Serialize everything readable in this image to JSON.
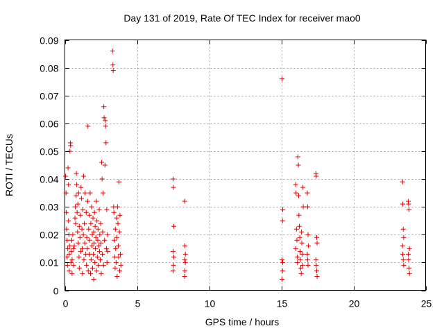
{
  "chart_data": {
    "type": "scatter",
    "title": "Day 131 of 2019, Rate Of TEC Index for receiver mao0",
    "xlabel": "GPS time / hours",
    "ylabel": "ROTI / TECUs",
    "xlim": [
      0,
      25
    ],
    "ylim": [
      0,
      0.09
    ],
    "x_ticks": [
      0,
      5,
      10,
      15,
      20,
      25
    ],
    "x_tick_labels": [
      "0",
      "5",
      "10",
      "15",
      "20",
      "25"
    ],
    "y_ticks": [
      0,
      0.01,
      0.02,
      0.03,
      0.04,
      0.05,
      0.06,
      0.07,
      0.08,
      0.09
    ],
    "y_tick_labels": [
      "0",
      "0.01",
      "0.02",
      "0.03",
      "0.04",
      "0.05",
      "0.06",
      "0.07",
      "0.08",
      "0.09"
    ],
    "grid": true,
    "marker": "+",
    "colors": {
      "points": "#e00000",
      "grid": "#a0a0a0",
      "axes": "#000000"
    },
    "series": [
      {
        "name": "ROTI",
        "points": [
          [
            0.05,
            0.041
          ],
          [
            0.08,
            0.035
          ],
          [
            0.1,
            0.028
          ],
          [
            0.12,
            0.022
          ],
          [
            0.15,
            0.018
          ],
          [
            0.15,
            0.012
          ],
          [
            0.18,
            0.009
          ],
          [
            0.2,
            0.015
          ],
          [
            0.22,
            0.044
          ],
          [
            0.25,
            0.038
          ],
          [
            0.25,
            0.025
          ],
          [
            0.28,
            0.02
          ],
          [
            0.3,
            0.013
          ],
          [
            0.3,
            0.007
          ],
          [
            0.32,
            0.016
          ],
          [
            0.35,
            0.05
          ],
          [
            0.38,
            0.053
          ],
          [
            0.4,
            0.052
          ],
          [
            0.42,
            0.01
          ],
          [
            0.45,
            0.014
          ],
          [
            0.48,
            0.018
          ],
          [
            0.5,
            0.011
          ],
          [
            0.5,
            0.006
          ],
          [
            0.55,
            0.02
          ],
          [
            0.6,
            0.015
          ],
          [
            0.6,
            0.009
          ],
          [
            0.65,
            0.016
          ],
          [
            0.7,
            0.026
          ],
          [
            0.72,
            0.03
          ],
          [
            0.75,
            0.024
          ],
          [
            0.78,
            0.034
          ],
          [
            0.8,
            0.042
          ],
          [
            0.82,
            0.038
          ],
          [
            0.85,
            0.028
          ],
          [
            0.88,
            0.021
          ],
          [
            0.9,
            0.031
          ],
          [
            0.92,
            0.017
          ],
          [
            0.95,
            0.035
          ],
          [
            0.98,
            0.012
          ],
          [
            1.0,
            0.023
          ],
          [
            1.0,
            0.008
          ],
          [
            1.05,
            0.019
          ],
          [
            1.08,
            0.027
          ],
          [
            1.1,
            0.014
          ],
          [
            1.12,
            0.037
          ],
          [
            1.15,
            0.033
          ],
          [
            1.18,
            0.022
          ],
          [
            1.2,
            0.015
          ],
          [
            1.22,
            0.006
          ],
          [
            1.25,
            0.029
          ],
          [
            1.28,
            0.02
          ],
          [
            1.3,
            0.041
          ],
          [
            1.32,
            0.011
          ],
          [
            1.35,
            0.024
          ],
          [
            1.38,
            0.017
          ],
          [
            1.4,
            0.035
          ],
          [
            1.45,
            0.013
          ],
          [
            1.48,
            0.028
          ],
          [
            1.5,
            0.009
          ],
          [
            1.52,
            0.019
          ],
          [
            1.55,
            0.015
          ],
          [
            1.58,
            0.032
          ],
          [
            1.6,
            0.059
          ],
          [
            1.62,
            0.007
          ],
          [
            1.65,
            0.022
          ],
          [
            1.68,
            0.013
          ],
          [
            1.7,
            0.027
          ],
          [
            1.72,
            0.018
          ],
          [
            1.75,
            0.035
          ],
          [
            1.78,
            0.006
          ],
          [
            1.8,
            0.024
          ],
          [
            1.82,
            0.011
          ],
          [
            1.85,
            0.03
          ],
          [
            1.88,
            0.016
          ],
          [
            1.9,
            0.02
          ],
          [
            1.92,
            0.008
          ],
          [
            1.95,
            0.026
          ],
          [
            1.98,
            0.013
          ],
          [
            2.0,
            0.021
          ],
          [
            2.0,
            0.004
          ],
          [
            2.02,
            0.017
          ],
          [
            2.05,
            0.028
          ],
          [
            2.08,
            0.01
          ],
          [
            2.1,
            0.023
          ],
          [
            2.12,
            0.015
          ],
          [
            2.15,
            0.019
          ],
          [
            2.18,
            0.032
          ],
          [
            2.2,
            0.007
          ],
          [
            2.22,
            0.025
          ],
          [
            2.25,
            0.012
          ],
          [
            2.28,
            0.018
          ],
          [
            2.3,
            0.022
          ],
          [
            2.32,
            0.009
          ],
          [
            2.35,
            0.016
          ],
          [
            2.38,
            0.029
          ],
          [
            2.4,
            0.014
          ],
          [
            2.42,
            0.02
          ],
          [
            2.45,
            0.011
          ],
          [
            2.48,
            0.024
          ],
          [
            2.5,
            0.017
          ],
          [
            2.52,
            0.006
          ],
          [
            2.55,
            0.046
          ],
          [
            2.58,
            0.04
          ],
          [
            2.6,
            0.013
          ],
          [
            2.62,
            0.021
          ],
          [
            2.65,
            0.035
          ],
          [
            2.68,
            0.009
          ],
          [
            2.7,
            0.066
          ],
          [
            2.72,
            0.062
          ],
          [
            2.75,
            0.018
          ],
          [
            2.78,
            0.045
          ],
          [
            2.8,
            0.061
          ],
          [
            2.82,
            0.059
          ],
          [
            2.85,
            0.053
          ],
          [
            2.88,
            0.015
          ],
          [
            2.9,
            0.029
          ],
          [
            2.92,
            0.01
          ],
          [
            2.95,
            0.02
          ],
          [
            2.98,
            0.014
          ],
          [
            3.3,
            0.086
          ],
          [
            3.33,
            0.081
          ],
          [
            3.35,
            0.079
          ],
          [
            3.38,
            0.03
          ],
          [
            3.4,
            0.028
          ],
          [
            3.42,
            0.018
          ],
          [
            3.45,
            0.012
          ],
          [
            3.48,
            0.008
          ],
          [
            3.5,
            0.022
          ],
          [
            3.52,
            0.015
          ],
          [
            3.55,
            0.01
          ],
          [
            3.58,
            0.026
          ],
          [
            3.6,
            0.019
          ],
          [
            3.62,
            0.005
          ],
          [
            3.65,
            0.03
          ],
          [
            3.68,
            0.024
          ],
          [
            3.7,
            0.016
          ],
          [
            3.72,
            0.012
          ],
          [
            3.75,
            0.039
          ],
          [
            3.78,
            0.021
          ],
          [
            3.8,
            0.007
          ],
          [
            3.82,
            0.027
          ],
          [
            3.85,
            0.013
          ],
          [
            3.88,
            0.009
          ],
          [
            7.5,
            0.04
          ],
          [
            7.52,
            0.037
          ],
          [
            7.55,
            0.023
          ],
          [
            7.5,
            0.014
          ],
          [
            7.55,
            0.012
          ],
          [
            7.52,
            0.009
          ],
          [
            7.5,
            0.007
          ],
          [
            8.3,
            0.032
          ],
          [
            8.32,
            0.016
          ],
          [
            8.35,
            0.013
          ],
          [
            8.3,
            0.011
          ],
          [
            8.35,
            0.01
          ],
          [
            8.32,
            0.007
          ],
          [
            8.3,
            0.005
          ],
          [
            15.05,
            0.076
          ],
          [
            15.1,
            0.029
          ],
          [
            15.08,
            0.025
          ],
          [
            15.05,
            0.011
          ],
          [
            15.1,
            0.01
          ],
          [
            15.08,
            0.007
          ],
          [
            15.05,
            0.004
          ],
          [
            16.0,
            0.038
          ],
          [
            16.02,
            0.035
          ],
          [
            16.05,
            0.022
          ],
          [
            16.08,
            0.018
          ],
          [
            16.0,
            0.015
          ],
          [
            16.1,
            0.012
          ],
          [
            16.12,
            0.01
          ],
          [
            16.15,
            0.048
          ],
          [
            16.18,
            0.045
          ],
          [
            16.2,
            0.034
          ],
          [
            16.22,
            0.027
          ],
          [
            16.25,
            0.023
          ],
          [
            16.28,
            0.019
          ],
          [
            16.3,
            0.014
          ],
          [
            16.32,
            0.011
          ],
          [
            16.35,
            0.008
          ],
          [
            16.38,
            0.006
          ],
          [
            16.4,
            0.021
          ],
          [
            16.42,
            0.017
          ],
          [
            16.45,
            0.013
          ],
          [
            16.48,
            0.009
          ],
          [
            16.5,
            0.037
          ],
          [
            16.52,
            0.03
          ],
          [
            16.8,
            0.035
          ],
          [
            16.82,
            0.03
          ],
          [
            16.85,
            0.02
          ],
          [
            16.88,
            0.016
          ],
          [
            16.8,
            0.013
          ],
          [
            16.82,
            0.011
          ],
          [
            16.85,
            0.009
          ],
          [
            17.4,
            0.042
          ],
          [
            17.42,
            0.041
          ],
          [
            17.45,
            0.019
          ],
          [
            17.48,
            0.017
          ],
          [
            17.4,
            0.011
          ],
          [
            17.42,
            0.009
          ],
          [
            17.45,
            0.007
          ],
          [
            17.48,
            0.005
          ],
          [
            23.4,
            0.039
          ],
          [
            23.42,
            0.031
          ],
          [
            23.45,
            0.022
          ],
          [
            23.48,
            0.019
          ],
          [
            23.4,
            0.016
          ],
          [
            23.42,
            0.013
          ],
          [
            23.45,
            0.011
          ],
          [
            23.48,
            0.009
          ],
          [
            23.8,
            0.032
          ],
          [
            23.82,
            0.031
          ],
          [
            23.85,
            0.029
          ],
          [
            23.88,
            0.015
          ],
          [
            23.8,
            0.013
          ],
          [
            23.82,
            0.011
          ],
          [
            23.85,
            0.008
          ],
          [
            23.88,
            0.006
          ]
        ]
      }
    ]
  }
}
